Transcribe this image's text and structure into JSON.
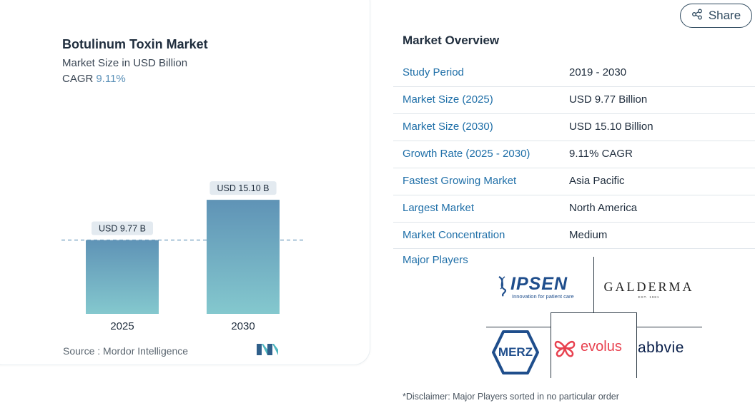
{
  "header": {
    "share_label": "Share",
    "share_icon": "share-icon"
  },
  "card": {
    "title": "Botulinum Toxin Market",
    "subtitle": "Market Size in USD Billion",
    "cagr_label": "CAGR",
    "cagr_value": "9.11%",
    "source": "Source :  Mordor Intelligence"
  },
  "chart_data": {
    "type": "bar",
    "title": "Botulinum Toxin Market",
    "subtitle": "Market Size in USD Billion",
    "categories": [
      "2025",
      "2030"
    ],
    "values": [
      9.77,
      15.1
    ],
    "data_labels": [
      "USD 9.77 B",
      "USD 15.10 B"
    ],
    "xlabel": "",
    "ylabel": "",
    "ylim": [
      0,
      17
    ],
    "reference_line": 9.77,
    "grid": false,
    "colors": {
      "bar_top": "#5f93b6",
      "bar_bottom": "#84c8ce",
      "label_bg": "#e3eaf0",
      "reference": "#7ea6c4"
    }
  },
  "overview": {
    "title": "Market Overview",
    "rows": [
      {
        "label": "Study Period",
        "value": "2019 - 2030"
      },
      {
        "label": "Market Size (2025)",
        "value": "USD 9.77 Billion"
      },
      {
        "label": "Market Size (2030)",
        "value": "USD 15.10 Billion"
      },
      {
        "label": "Growth Rate (2025 - 2030)",
        "value": "9.11% CAGR"
      },
      {
        "label": "Fastest Growing Market",
        "value": "Asia Pacific"
      },
      {
        "label": "Largest Market",
        "value": "North America"
      },
      {
        "label": "Market Concentration",
        "value": "Medium"
      }
    ],
    "major_players_title": "Major Players",
    "players": {
      "ipsen": "IPSEN",
      "ipsen_tagline": "Innovation for patient care",
      "galderma": "GALDERMA",
      "galderma_est": "EST. 1981",
      "merz": "MERZ",
      "evolus": "evolus",
      "abbvie": "abbvie"
    },
    "disclaimer": "*Disclaimer: Major Players sorted in no particular order"
  },
  "colors": {
    "accent": "#1f6fa8",
    "text": "#1f2d3d",
    "divider": "#dfe5ea",
    "evolus": "#e8414f",
    "merz": "#1f4e8c"
  }
}
